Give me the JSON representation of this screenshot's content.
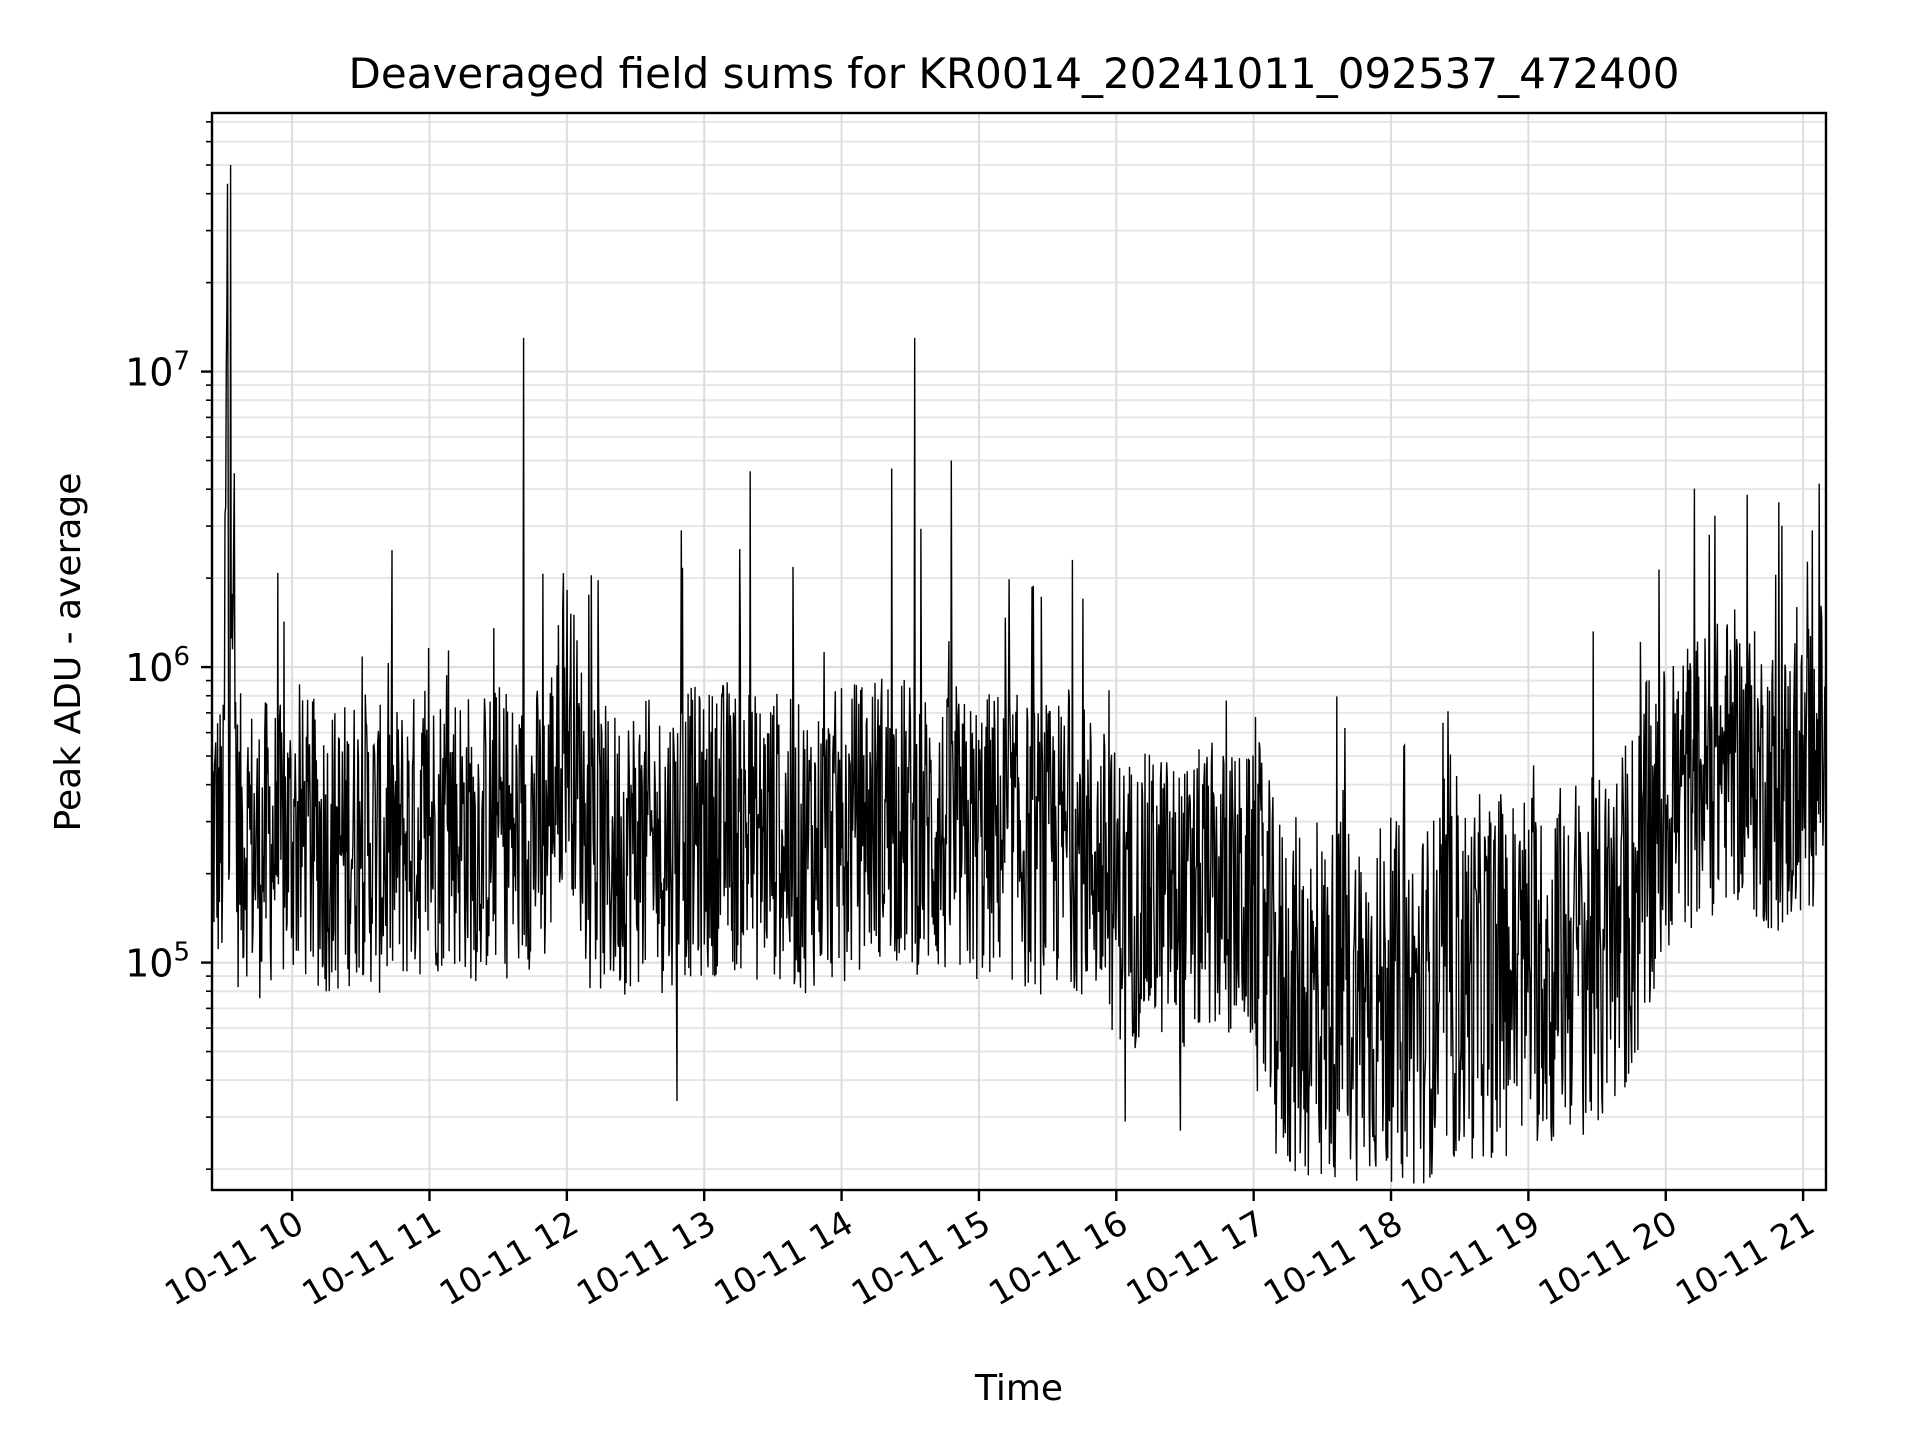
{
  "chart_data": {
    "type": "line",
    "title": "Deaveraged field sums for KR0014_20241011_092537_472400",
    "xlabel": "Time",
    "ylabel": "Peak ADU - average",
    "yscale": "log",
    "grid": "on (major and minor)",
    "xlim": [
      "2024-10-11 09:25",
      "2024-10-11 21:10"
    ],
    "ylim": [
      17000,
      75000000
    ],
    "x_ticks": [
      {
        "t": "2024-10-11 10:00",
        "label": "10-11 10"
      },
      {
        "t": "2024-10-11 11:00",
        "label": "10-11 11"
      },
      {
        "t": "2024-10-11 12:00",
        "label": "10-11 12"
      },
      {
        "t": "2024-10-11 13:00",
        "label": "10-11 13"
      },
      {
        "t": "2024-10-11 14:00",
        "label": "10-11 14"
      },
      {
        "t": "2024-10-11 15:00",
        "label": "10-11 15"
      },
      {
        "t": "2024-10-11 16:00",
        "label": "10-11 16"
      },
      {
        "t": "2024-10-11 17:00",
        "label": "10-11 17"
      },
      {
        "t": "2024-10-11 18:00",
        "label": "10-11 18"
      },
      {
        "t": "2024-10-11 19:00",
        "label": "10-11 19"
      },
      {
        "t": "2024-10-11 20:00",
        "label": "10-11 20"
      },
      {
        "t": "2024-10-11 21:00",
        "label": "10-11 21"
      }
    ],
    "y_ticks": [
      {
        "value": 100000,
        "base": "10",
        "exp": "5"
      },
      {
        "value": 1000000,
        "base": "10",
        "exp": "6"
      },
      {
        "value": 10000000,
        "base": "10",
        "exp": "7"
      }
    ],
    "series": [
      {
        "color": "#000000",
        "x": [
          "2024-10-11 09:25",
          "2024-10-11 09:30",
          "2024-10-11 09:32",
          "2024-10-11 09:33",
          "2024-10-11 09:36",
          "2024-10-11 09:40",
          "2024-10-11 09:45",
          "2024-10-11 09:50",
          "2024-10-11 09:55",
          "2024-10-11 10:00",
          "2024-10-11 10:10",
          "2024-10-11 10:20",
          "2024-10-11 10:30",
          "2024-10-11 10:40",
          "2024-10-11 10:50",
          "2024-10-11 11:00",
          "2024-10-11 11:10",
          "2024-10-11 11:20",
          "2024-10-11 11:30",
          "2024-10-11 11:40",
          "2024-10-11 11:41",
          "2024-10-11 11:43",
          "2024-10-11 11:50",
          "2024-10-11 12:00",
          "2024-10-11 12:10",
          "2024-10-11 12:20",
          "2024-10-11 12:30",
          "2024-10-11 12:40",
          "2024-10-11 12:50",
          "2024-10-11 13:00",
          "2024-10-11 13:10",
          "2024-10-11 13:20",
          "2024-10-11 13:30",
          "2024-10-11 13:40",
          "2024-10-11 13:50",
          "2024-10-11 14:00",
          "2024-10-11 14:10",
          "2024-10-11 14:20",
          "2024-10-11 14:30",
          "2024-10-11 14:32",
          "2024-10-11 14:34",
          "2024-10-11 14:40",
          "2024-10-11 14:50",
          "2024-10-11 15:00",
          "2024-10-11 15:10",
          "2024-10-11 15:20",
          "2024-10-11 15:30",
          "2024-10-11 15:40",
          "2024-10-11 15:50",
          "2024-10-11 16:00",
          "2024-10-11 16:10",
          "2024-10-11 16:20",
          "2024-10-11 16:30",
          "2024-10-11 16:40",
          "2024-10-11 16:50",
          "2024-10-11 17:00",
          "2024-10-11 17:10",
          "2024-10-11 17:20",
          "2024-10-11 17:30",
          "2024-10-11 17:40",
          "2024-10-11 17:50",
          "2024-10-11 18:00",
          "2024-10-11 18:10",
          "2024-10-11 18:20",
          "2024-10-11 18:30",
          "2024-10-11 18:40",
          "2024-10-11 18:50",
          "2024-10-11 19:00",
          "2024-10-11 19:10",
          "2024-10-11 19:20",
          "2024-10-11 19:30",
          "2024-10-11 19:40",
          "2024-10-11 19:50",
          "2024-10-11 20:00",
          "2024-10-11 20:10",
          "2024-10-11 20:20",
          "2024-10-11 20:30",
          "2024-10-11 20:40",
          "2024-10-11 20:50",
          "2024-10-11 21:00",
          "2024-10-11 21:05",
          "2024-10-11 21:10"
        ],
        "y": [
          300000,
          250000,
          6000000,
          50000000,
          250000,
          280000,
          230000,
          260000,
          240000,
          270000,
          250000,
          240000,
          280000,
          230000,
          260000,
          280000,
          300000,
          260000,
          290000,
          250000,
          13000000,
          300000,
          270000,
          700000,
          250000,
          230000,
          260000,
          240000,
          280000,
          270000,
          300000,
          260000,
          280000,
          240000,
          260000,
          270000,
          300000,
          330000,
          290000,
          13000000,
          280000,
          270000,
          250000,
          260000,
          280000,
          250000,
          240000,
          260000,
          230000,
          170000,
          160000,
          170000,
          150000,
          180000,
          170000,
          160000,
          80000,
          75000,
          70000,
          80000,
          72000,
          75000,
          70000,
          80000,
          85000,
          90000,
          90000,
          100000,
          95000,
          110000,
          100000,
          130000,
          200000,
          320000,
          400000,
          450000,
          500000,
          420000,
          380000,
          400000,
          500000,
          550000
        ],
        "spikes": [
          {
            "x": "2024-10-11 09:33",
            "y": 50000000
          },
          {
            "x": "2024-10-11 09:32",
            "y": 6000000
          },
          {
            "x": "2024-10-11 11:41",
            "y": 13000000
          },
          {
            "x": "2024-10-11 14:32",
            "y": 13000000
          },
          {
            "x": "2024-10-11 14:22",
            "y": 4700000
          },
          {
            "x": "2024-10-11 13:20",
            "y": 4600000
          },
          {
            "x": "2024-10-11 14:48",
            "y": 5000000
          },
          {
            "x": "2024-10-11 12:50",
            "y": 2900000
          },
          {
            "x": "2024-10-11 21:04",
            "y": 2900000
          }
        ],
        "lows": [
          {
            "x": "2024-10-11 12:48",
            "y": 34000
          },
          {
            "x": "2024-10-11 16:04",
            "y": 29000
          },
          {
            "x": "2024-10-11 16:28",
            "y": 27000
          },
          {
            "x": "2024-10-11 18:07",
            "y": 22000
          },
          {
            "x": "2024-10-11 19:10",
            "y": 28000
          },
          {
            "x": "2024-10-11 19:25",
            "y": 31000
          }
        ]
      }
    ]
  }
}
